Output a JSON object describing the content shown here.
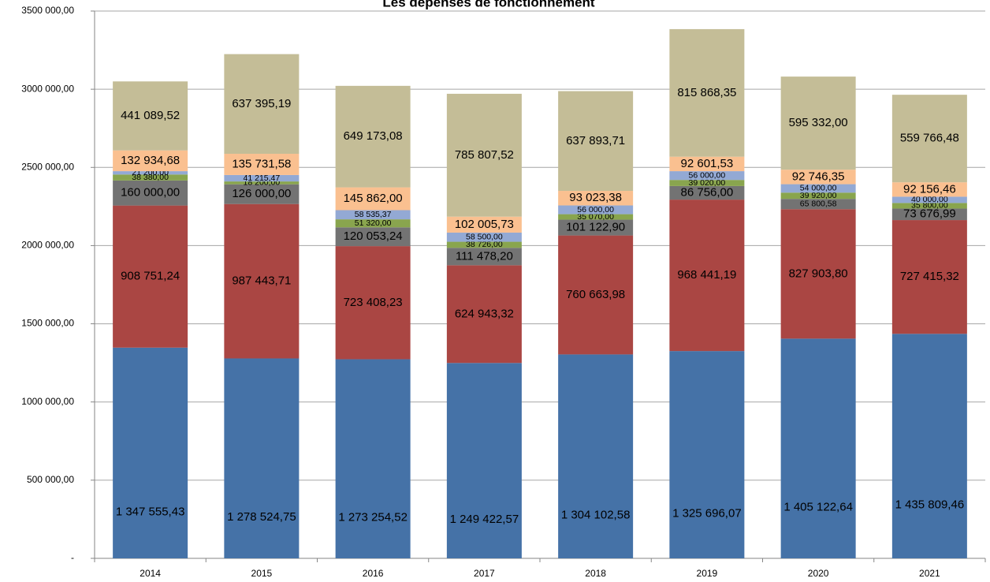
{
  "chart_data": {
    "type": "stacked_bar",
    "title": "Les dépenses de fonctionnement",
    "categories": [
      "2014",
      "2015",
      "2016",
      "2017",
      "2018",
      "2019",
      "2020",
      "2021"
    ],
    "ylim": [
      0,
      3500000
    ],
    "yticks": [
      {
        "value": 0,
        "label": "-"
      },
      {
        "value": 500000,
        "label": "500 000,00"
      },
      {
        "value": 1000000,
        "label": "1000 000,00"
      },
      {
        "value": 1500000,
        "label": "1500 000,00"
      },
      {
        "value": 2000000,
        "label": "2000 000,00"
      },
      {
        "value": 2500000,
        "label": "2500 000,00"
      },
      {
        "value": 3000000,
        "label": "3000 000,00"
      },
      {
        "value": 3500000,
        "label": "3500 000,00"
      }
    ],
    "grid": true,
    "series": [
      {
        "color": "#4572a7",
        "values": [
          1347555.43,
          1278524.75,
          1273254.52,
          1249422.57,
          1304102.58,
          1325696.07,
          1405122.64,
          1435809.46
        ],
        "value_labels": [
          "1 347 555,43",
          "1 278 524,75",
          "1 273 254,52",
          "1 249 422,57",
          "1 304 102,58",
          "1 325 696,07",
          "1 405 122,64",
          "1 435 809,46"
        ]
      },
      {
        "color": "#aa4643",
        "values": [
          908751.24,
          987443.71,
          723408.23,
          624943.32,
          760663.98,
          968441.19,
          827903.8,
          727415.32
        ],
        "value_labels": [
          "908 751,24",
          "987 443,71",
          "723 408,23",
          "624 943,32",
          "760 663,98",
          "968 441,19",
          "827 903,80",
          "727 415,32"
        ]
      },
      {
        "color": "#737373",
        "values": [
          160000.0,
          126000.0,
          120053.24,
          111478.2,
          101122.9,
          86756.0,
          65800.58,
          73676.99
        ],
        "value_labels": [
          "160 000,00",
          "126 000,00",
          "120 053,24",
          "111 478,20",
          "101 122,90",
          "86 756,00",
          "65 800,58",
          "73 676,99"
        ]
      },
      {
        "color": "#89a54e",
        "values": [
          38380.0,
          18200.0,
          51320.0,
          38726.0,
          35070.0,
          39020.0,
          39920.0,
          35800.0
        ],
        "value_labels": [
          "38 380,00",
          "18 200,00",
          "51 320,00",
          "38 726,00",
          "35 070,00",
          "39 020,00",
          "39 920,00",
          "35 800,00"
        ]
      },
      {
        "color": "#93a9d4",
        "values": [
          21200.0,
          41215.47,
          58535.37,
          58500.0,
          56000.0,
          56000.0,
          54000.0,
          40000.0
        ],
        "value_labels": [
          "21 200,00",
          "41 215,47",
          "58 535,37",
          "58 500,00",
          "56 000,00",
          "56 000,00",
          "54 000,00",
          "40 000,00"
        ]
      },
      {
        "color": "#fac090",
        "values": [
          132934.68,
          135731.58,
          145862.0,
          102005.73,
          93023.38,
          92601.53,
          92746.35,
          92156.46
        ],
        "value_labels": [
          "132 934,68",
          "135 731,58",
          "145 862,00",
          "102 005,73",
          "93 023,38",
          "92 601,53",
          "92 746,35",
          "92 156,46"
        ]
      },
      {
        "color": "#c4bd97",
        "values": [
          441089.52,
          637395.19,
          649173.08,
          785807.52,
          637893.71,
          815868.35,
          595332.0,
          559766.48
        ],
        "value_labels": [
          "441 089,52",
          "637 395,19",
          "649 173,08",
          "785 807,52",
          "637 893,71",
          "815 868,35",
          "595 332,00",
          "559 766,48"
        ]
      }
    ]
  }
}
